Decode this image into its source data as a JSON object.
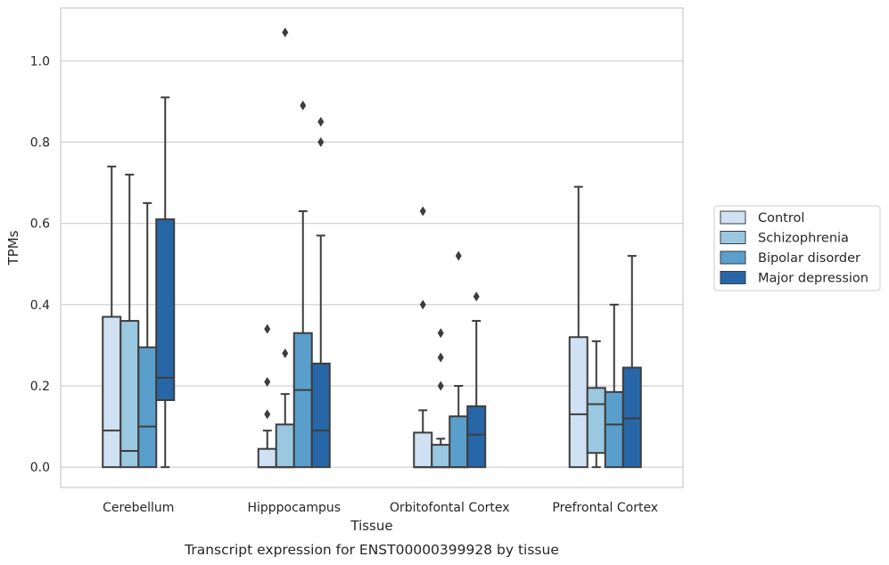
{
  "caption": "Transcript expression for ENST00000399928 by tissue",
  "chart_data": {
    "type": "boxplot",
    "xlabel": "Tissue",
    "ylabel": "TPMs",
    "ylim": [
      -0.05,
      1.13
    ],
    "yticks": [
      0.0,
      0.2,
      0.4,
      0.6,
      0.8,
      1.0
    ],
    "ytick_labels": [
      "0.0",
      "0.2",
      "0.4",
      "0.6",
      "0.8",
      "1.0"
    ],
    "grid": "horizontal",
    "legend_position": "right",
    "categories": [
      "Cerebellum",
      "Hipppocampus",
      "Orbitofontal Cortex",
      "Prefrontal Cortex"
    ],
    "series": [
      {
        "name": "Control",
        "color": "#cfe1f2",
        "boxes": [
          {
            "whisker_low": 0.0,
            "q1": 0.0,
            "median": 0.09,
            "q3": 0.37,
            "whisker_high": 0.74,
            "outliers": []
          },
          {
            "whisker_low": 0.0,
            "q1": 0.0,
            "median": 0.0,
            "q3": 0.045,
            "whisker_high": 0.09,
            "outliers": [
              0.13,
              0.21,
              0.34
            ]
          },
          {
            "whisker_low": 0.0,
            "q1": 0.0,
            "median": 0.0,
            "q3": 0.085,
            "whisker_high": 0.14,
            "outliers": [
              0.4,
              0.63
            ]
          },
          {
            "whisker_low": 0.0,
            "q1": 0.0,
            "median": 0.13,
            "q3": 0.32,
            "whisker_high": 0.69,
            "outliers": []
          }
        ]
      },
      {
        "name": "Schizophrenia",
        "color": "#9ac8e0",
        "boxes": [
          {
            "whisker_low": 0.0,
            "q1": 0.0,
            "median": 0.04,
            "q3": 0.36,
            "whisker_high": 0.72,
            "outliers": []
          },
          {
            "whisker_low": 0.0,
            "q1": 0.0,
            "median": 0.0,
            "q3": 0.105,
            "whisker_high": 0.18,
            "outliers": [
              0.28,
              1.07
            ]
          },
          {
            "whisker_low": 0.0,
            "q1": 0.0,
            "median": 0.0,
            "q3": 0.055,
            "whisker_high": 0.07,
            "outliers": [
              0.2,
              0.27,
              0.33
            ]
          },
          {
            "whisker_low": 0.0,
            "q1": 0.035,
            "median": 0.155,
            "q3": 0.195,
            "whisker_high": 0.31,
            "outliers": []
          }
        ]
      },
      {
        "name": "Bipolar disorder",
        "color": "#5a9fcc",
        "boxes": [
          {
            "whisker_low": 0.0,
            "q1": 0.0,
            "median": 0.1,
            "q3": 0.295,
            "whisker_high": 0.65,
            "outliers": []
          },
          {
            "whisker_low": 0.0,
            "q1": 0.0,
            "median": 0.19,
            "q3": 0.33,
            "whisker_high": 0.63,
            "outliers": [
              0.89
            ]
          },
          {
            "whisker_low": 0.0,
            "q1": 0.0,
            "median": 0.0,
            "q3": 0.125,
            "whisker_high": 0.2,
            "outliers": [
              0.52
            ]
          },
          {
            "whisker_low": 0.0,
            "q1": 0.0,
            "median": 0.105,
            "q3": 0.185,
            "whisker_high": 0.4,
            "outliers": []
          }
        ]
      },
      {
        "name": "Major depression",
        "color": "#2767a8",
        "boxes": [
          {
            "whisker_low": 0.0,
            "q1": 0.165,
            "median": 0.22,
            "q3": 0.61,
            "whisker_high": 0.91,
            "outliers": []
          },
          {
            "whisker_low": 0.0,
            "q1": 0.0,
            "median": 0.09,
            "q3": 0.255,
            "whisker_high": 0.57,
            "outliers": [
              0.8,
              0.85
            ]
          },
          {
            "whisker_low": 0.0,
            "q1": 0.0,
            "median": 0.08,
            "q3": 0.15,
            "whisker_high": 0.36,
            "outliers": [
              0.42
            ]
          },
          {
            "whisker_low": 0.0,
            "q1": 0.0,
            "median": 0.12,
            "q3": 0.245,
            "whisker_high": 0.52,
            "outliers": []
          }
        ]
      }
    ]
  }
}
